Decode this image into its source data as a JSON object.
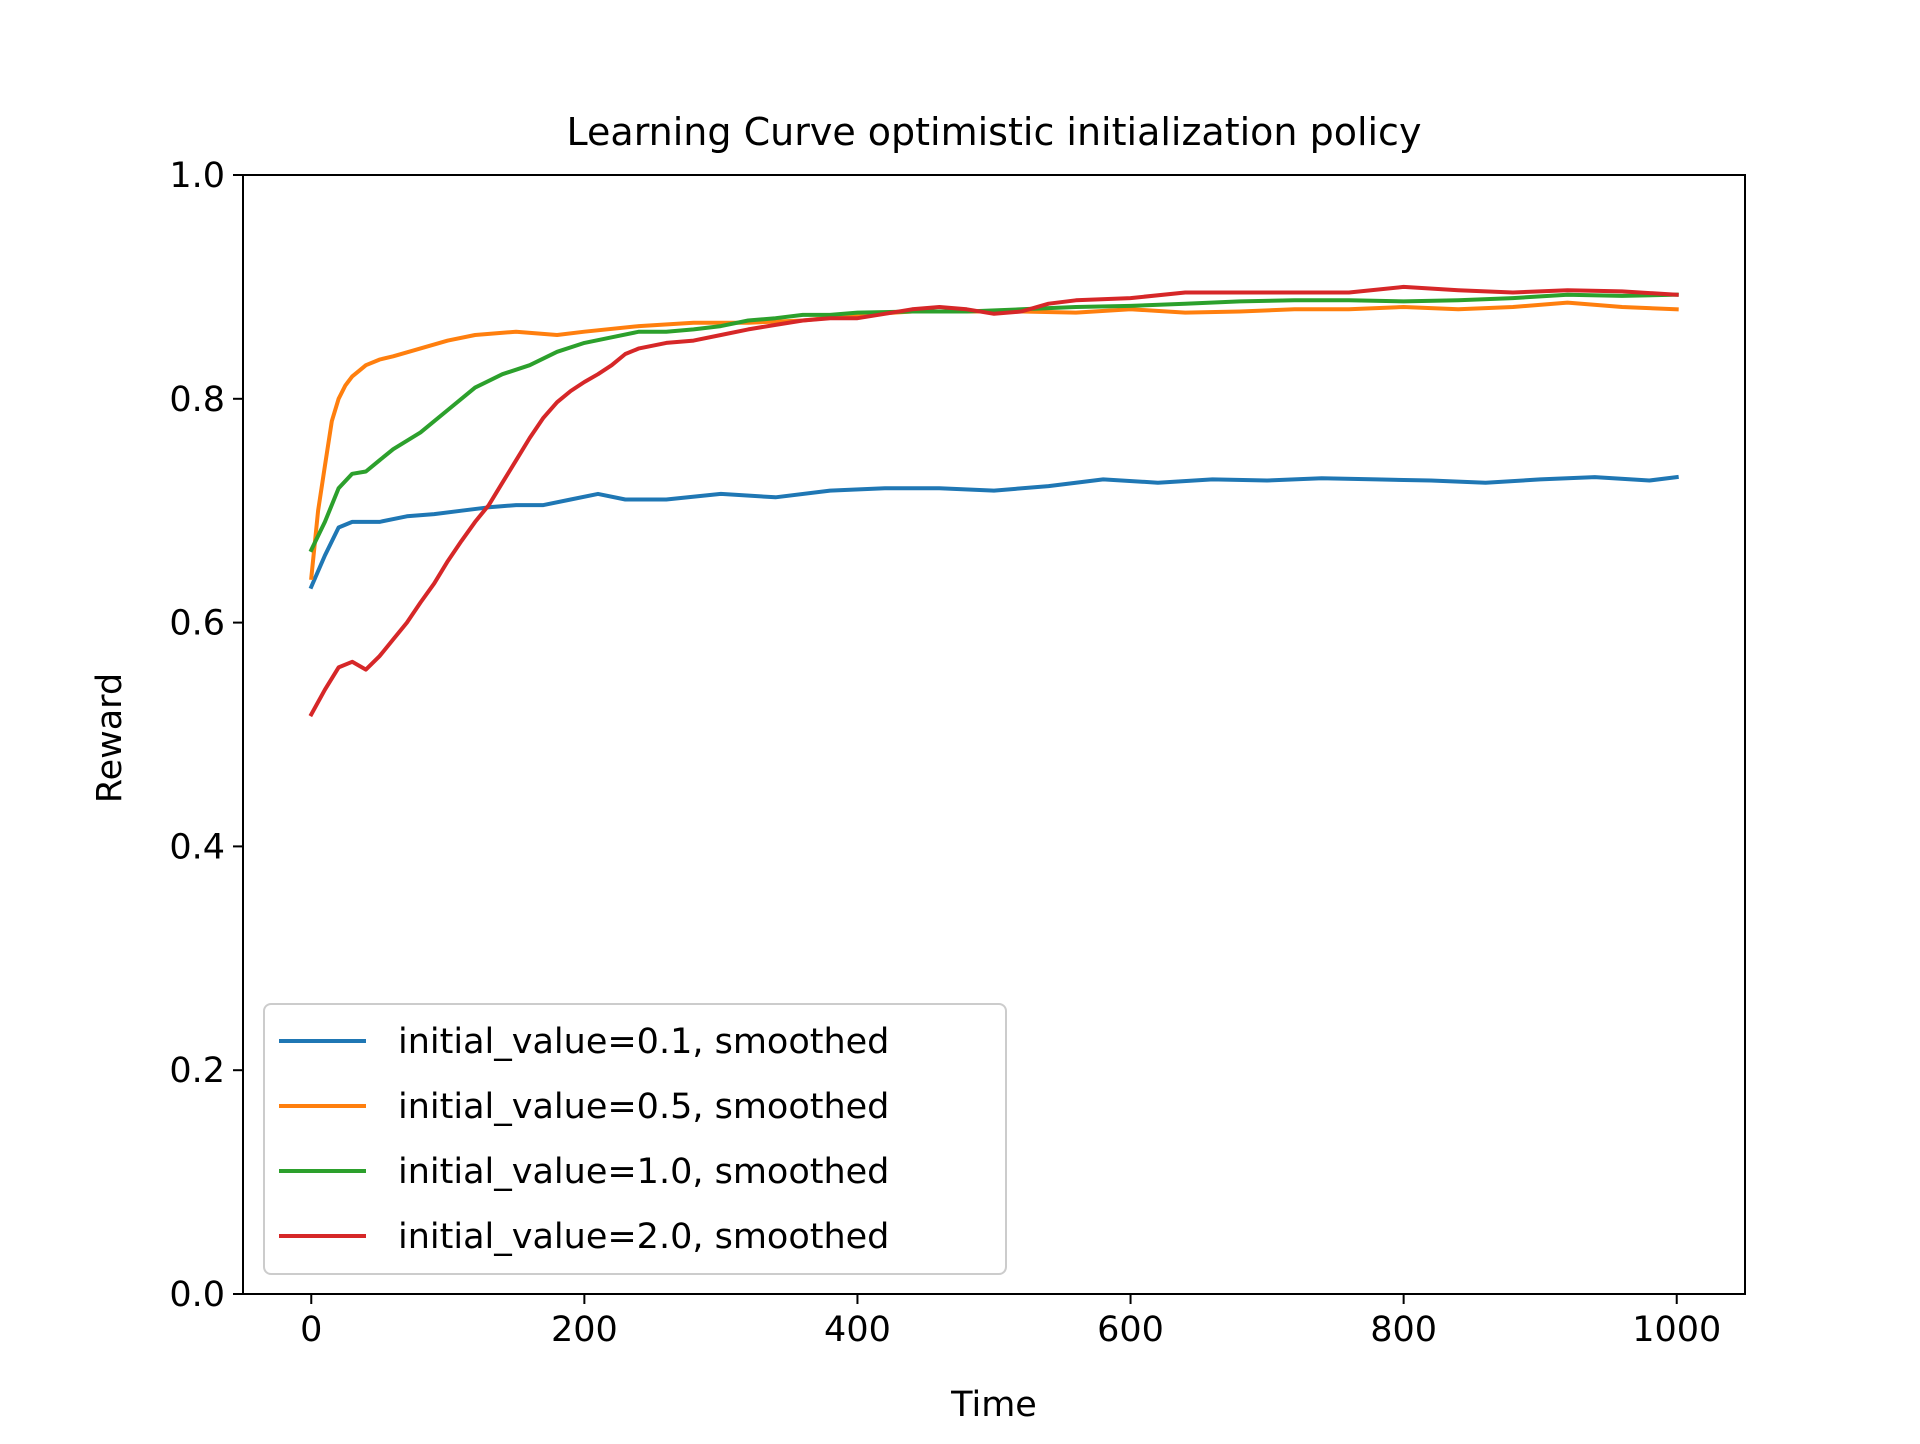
{
  "chart_data": {
    "type": "line",
    "title": "Learning Curve optimistic initialization policy",
    "xlabel": "Time",
    "ylabel": "Reward",
    "xlim": [
      -50,
      1050
    ],
    "ylim": [
      0.0,
      1.0
    ],
    "xticks": [
      0,
      200,
      400,
      600,
      800,
      1000
    ],
    "yticks": [
      0.0,
      0.2,
      0.4,
      0.6,
      0.8,
      1.0
    ],
    "xtick_labels": [
      "0",
      "200",
      "400",
      "600",
      "800",
      "1000"
    ],
    "ytick_labels": [
      "0.0",
      "0.2",
      "0.4",
      "0.6",
      "0.8",
      "1.0"
    ],
    "grid": false,
    "legend": "lower-left",
    "series": [
      {
        "name": "initial_value=0.1, smoothed",
        "color": "#1f77b4",
        "x": [
          0,
          10,
          20,
          30,
          50,
          70,
          90,
          110,
          130,
          150,
          170,
          190,
          210,
          230,
          260,
          300,
          340,
          380,
          420,
          460,
          500,
          540,
          580,
          620,
          660,
          700,
          740,
          780,
          820,
          860,
          900,
          940,
          980,
          1000
        ],
        "y": [
          0.632,
          0.66,
          0.685,
          0.69,
          0.69,
          0.695,
          0.697,
          0.7,
          0.703,
          0.705,
          0.705,
          0.71,
          0.715,
          0.71,
          0.71,
          0.715,
          0.712,
          0.718,
          0.72,
          0.72,
          0.718,
          0.722,
          0.728,
          0.725,
          0.728,
          0.727,
          0.729,
          0.728,
          0.727,
          0.725,
          0.728,
          0.73,
          0.727,
          0.73
        ]
      },
      {
        "name": "initial_value=0.5, smoothed",
        "color": "#ff7f0e",
        "x": [
          0,
          5,
          10,
          15,
          20,
          25,
          30,
          35,
          40,
          50,
          60,
          80,
          100,
          120,
          150,
          180,
          200,
          240,
          280,
          320,
          360,
          400,
          440,
          480,
          520,
          560,
          600,
          640,
          680,
          720,
          760,
          800,
          840,
          880,
          920,
          960,
          1000
        ],
        "y": [
          0.64,
          0.7,
          0.74,
          0.78,
          0.8,
          0.812,
          0.82,
          0.825,
          0.83,
          0.835,
          0.838,
          0.845,
          0.852,
          0.857,
          0.86,
          0.857,
          0.86,
          0.865,
          0.868,
          0.868,
          0.87,
          0.875,
          0.878,
          0.878,
          0.878,
          0.877,
          0.88,
          0.877,
          0.878,
          0.88,
          0.88,
          0.882,
          0.88,
          0.882,
          0.886,
          0.882,
          0.88
        ]
      },
      {
        "name": "initial_value=1.0, smoothed",
        "color": "#2ca02c",
        "x": [
          0,
          10,
          20,
          30,
          40,
          50,
          60,
          80,
          100,
          120,
          140,
          160,
          180,
          200,
          220,
          240,
          260,
          280,
          300,
          320,
          340,
          360,
          380,
          400,
          440,
          480,
          520,
          560,
          600,
          640,
          680,
          720,
          760,
          800,
          840,
          880,
          920,
          960,
          1000
        ],
        "y": [
          0.665,
          0.69,
          0.72,
          0.733,
          0.735,
          0.745,
          0.755,
          0.77,
          0.79,
          0.81,
          0.822,
          0.83,
          0.842,
          0.85,
          0.855,
          0.86,
          0.86,
          0.862,
          0.865,
          0.87,
          0.872,
          0.875,
          0.875,
          0.877,
          0.878,
          0.878,
          0.88,
          0.882,
          0.883,
          0.885,
          0.887,
          0.888,
          0.888,
          0.887,
          0.888,
          0.89,
          0.893,
          0.892,
          0.893
        ]
      },
      {
        "name": "initial_value=2.0, smoothed",
        "color": "#d62728",
        "x": [
          0,
          10,
          20,
          30,
          40,
          50,
          60,
          70,
          80,
          90,
          100,
          110,
          120,
          130,
          140,
          150,
          160,
          170,
          180,
          190,
          200,
          210,
          220,
          230,
          240,
          260,
          280,
          300,
          320,
          340,
          360,
          380,
          400,
          420,
          440,
          460,
          480,
          500,
          520,
          540,
          560,
          600,
          640,
          680,
          720,
          760,
          800,
          840,
          880,
          920,
          960,
          1000
        ],
        "y": [
          0.518,
          0.54,
          0.56,
          0.565,
          0.558,
          0.57,
          0.585,
          0.6,
          0.618,
          0.635,
          0.655,
          0.673,
          0.69,
          0.705,
          0.725,
          0.745,
          0.765,
          0.783,
          0.797,
          0.807,
          0.815,
          0.822,
          0.83,
          0.84,
          0.845,
          0.85,
          0.852,
          0.857,
          0.862,
          0.866,
          0.87,
          0.872,
          0.872,
          0.876,
          0.88,
          0.882,
          0.88,
          0.876,
          0.878,
          0.885,
          0.888,
          0.89,
          0.895,
          0.895,
          0.895,
          0.895,
          0.9,
          0.897,
          0.895,
          0.897,
          0.896,
          0.893
        ]
      }
    ]
  }
}
